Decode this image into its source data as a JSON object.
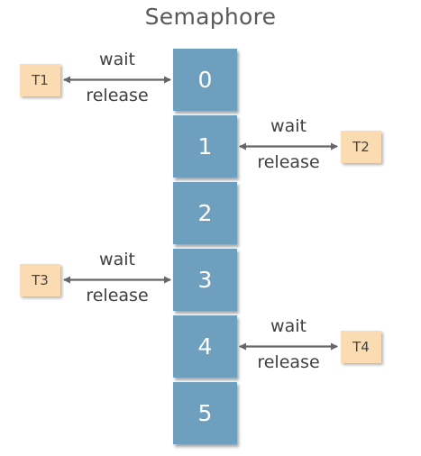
{
  "title": "Semaphore",
  "slots": [
    "0",
    "1",
    "2",
    "3",
    "4",
    "5"
  ],
  "threads": [
    {
      "label": "T1",
      "side": "left",
      "slot": 0,
      "wait_label": "wait",
      "release_label": "release"
    },
    {
      "label": "T2",
      "side": "right",
      "slot": 1,
      "wait_label": "wait",
      "release_label": "release"
    },
    {
      "label": "T3",
      "side": "left",
      "slot": 3,
      "wait_label": "wait",
      "release_label": "release"
    },
    {
      "label": "T4",
      "side": "right",
      "slot": 4,
      "wait_label": "wait",
      "release_label": "release"
    }
  ],
  "colors": {
    "slot_fill": "#6f9fbe",
    "thread_fill": "#fbdcb2",
    "arrow": "#666666",
    "text": "#404040"
  }
}
